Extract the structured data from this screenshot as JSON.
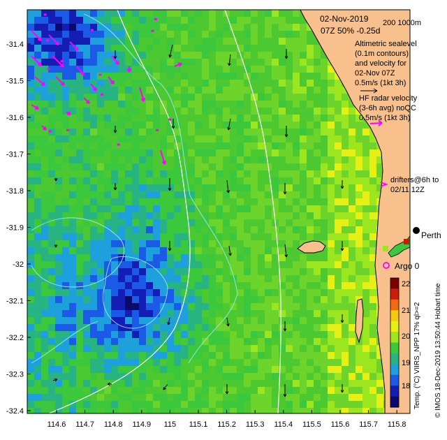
{
  "header": {
    "date": "02-Nov-2019",
    "time_pct": "07Z  50% -0.25d",
    "contour_levels": "200  1000m"
  },
  "legend": {
    "altimetric_lines": [
      "Altimetric sealevel",
      "(0.1m contours)",
      "and velocity for",
      "02-Nov 07Z"
    ],
    "alt_scale": "0.5m/s (1kt 3h)",
    "hf_lines": [
      "HF radar velocity",
      "(3-6h avg) noQC"
    ],
    "hf_scale": "0.5m/s (1kt 3h)",
    "drifters_lines": [
      "drifters@6h to",
      "02/11 12Z"
    ],
    "argo": "Argo 0",
    "place": "Perth"
  },
  "colorbar": {
    "label": "Temp. (°C) VIIRS_NPP 17% ql>=2",
    "ticks": [
      "22",
      "21",
      "20",
      "19",
      "18"
    ],
    "colors": [
      "#7a0000",
      "#c81e0a",
      "#f06a10",
      "#f5c814",
      "#e6f014",
      "#9be61e",
      "#3cc83c",
      "#28b482",
      "#1ea0dc",
      "#1a5ae6",
      "#141eb4",
      "#0a0a6e"
    ]
  },
  "credit": "© IMOS 18-Dec-2019 13:50:44 Hobart time",
  "axes": {
    "y_ticks": [
      "-31.4",
      "-31.5",
      "-31.6",
      "-31.7",
      "-31.8",
      "-31.9",
      "-32",
      "-32.1",
      "-32.2",
      "-32.3",
      "-32.4"
    ],
    "x_ticks": [
      "114.6",
      "114.7",
      "114.8",
      "114.9",
      "115",
      "115.1",
      "115.2",
      "115.3",
      "115.4",
      "115.5",
      "115.6",
      "115.7",
      "115.8"
    ]
  },
  "colors": {
    "land": "#f7c08c",
    "ocean_base": "#4cc830",
    "drifter": "#ff00ff"
  }
}
